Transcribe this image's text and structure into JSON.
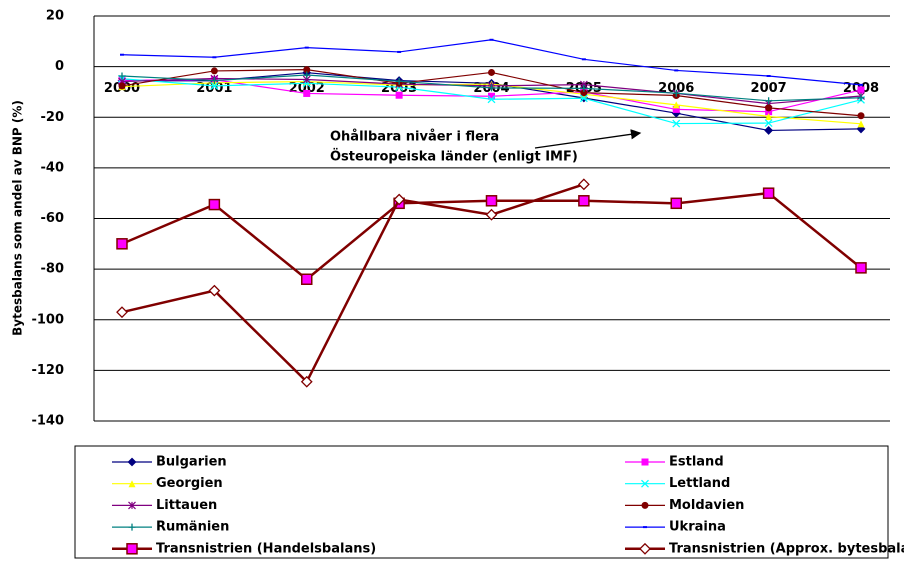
{
  "chart_data": {
    "type": "line",
    "ylabel": "Bytesbalans som andel av BNP (%)",
    "annotation": [
      "Ohållbara nivåer i flera",
      "Östeuropeiska länder (enligt IMF)"
    ],
    "categories": [
      "2000",
      "2001",
      "2002",
      "2003",
      "2004",
      "2005",
      "2006",
      "2007",
      "2008"
    ],
    "ylim": [
      -140,
      20
    ],
    "yticks": [
      -140,
      -120,
      -100,
      -80,
      -60,
      -40,
      -20,
      0,
      20
    ],
    "grid": true,
    "series": [
      {
        "name": "Bulgarien",
        "color": "#000080",
        "marker": "diamond",
        "values": [
          -5.6,
          -5.6,
          -2.4,
          -5.5,
          -6.6,
          -12.4,
          -18.4,
          -25.2,
          -24.6
        ]
      },
      {
        "name": "Estland",
        "color": "#ff00ff",
        "marker": "square",
        "values": [
          -5.4,
          -5.2,
          -10.6,
          -11.3,
          -11.7,
          -10,
          -16.9,
          -17.8,
          -9.2
        ]
      },
      {
        "name": "Georgien",
        "color": "#ffff00",
        "marker": "triangle",
        "values": [
          -7.9,
          -6.4,
          -5.9,
          -7.3,
          -6.9,
          -10.9,
          -15.1,
          -19.7,
          -22.6
        ]
      },
      {
        "name": "Lettland",
        "color": "#00ffff",
        "marker": "x",
        "values": [
          -4.8,
          -7.6,
          -6.6,
          -8.1,
          -12.9,
          -12.5,
          -22.5,
          -22.3,
          -13.1
        ]
      },
      {
        "name": "Littauen",
        "color": "#800080",
        "marker": "star",
        "values": [
          -5.9,
          -4.7,
          -5.1,
          -6.9,
          -7.6,
          -7.1,
          -10.6,
          -14.6,
          -11.6
        ]
      },
      {
        "name": "Moldavien",
        "color": "#800000",
        "marker": "circle",
        "values": [
          -7.6,
          -1.7,
          -1.2,
          -6.6,
          -2.3,
          -10.3,
          -11.4,
          -16.3,
          -19.4
        ]
      },
      {
        "name": "Rumänien",
        "color": "#008080",
        "marker": "plus",
        "values": [
          -3.7,
          -5.5,
          -3.3,
          -5.8,
          -8.4,
          -8.6,
          -10.5,
          -13.5,
          -12.3
        ]
      },
      {
        "name": "Ukraina",
        "color": "#0000ff",
        "marker": "dash",
        "values": [
          4.7,
          3.7,
          7.5,
          5.8,
          10.6,
          2.9,
          -1.5,
          -3.7,
          -7.2
        ]
      },
      {
        "name": "Transnistrien (Handelsbalans)",
        "color": "#800000",
        "marker": "square-filled",
        "values": [
          -70,
          -54.5,
          -84,
          -54,
          -53,
          -53,
          -54,
          -50,
          -79.5
        ]
      },
      {
        "name": "Transnistrien (Approx. bytesbalans)",
        "color": "#800000",
        "marker": "diamond-open",
        "values": [
          -97,
          -88.5,
          -124.5,
          -52.5,
          -58.5,
          -46.5,
          null,
          null,
          null
        ]
      }
    ]
  }
}
